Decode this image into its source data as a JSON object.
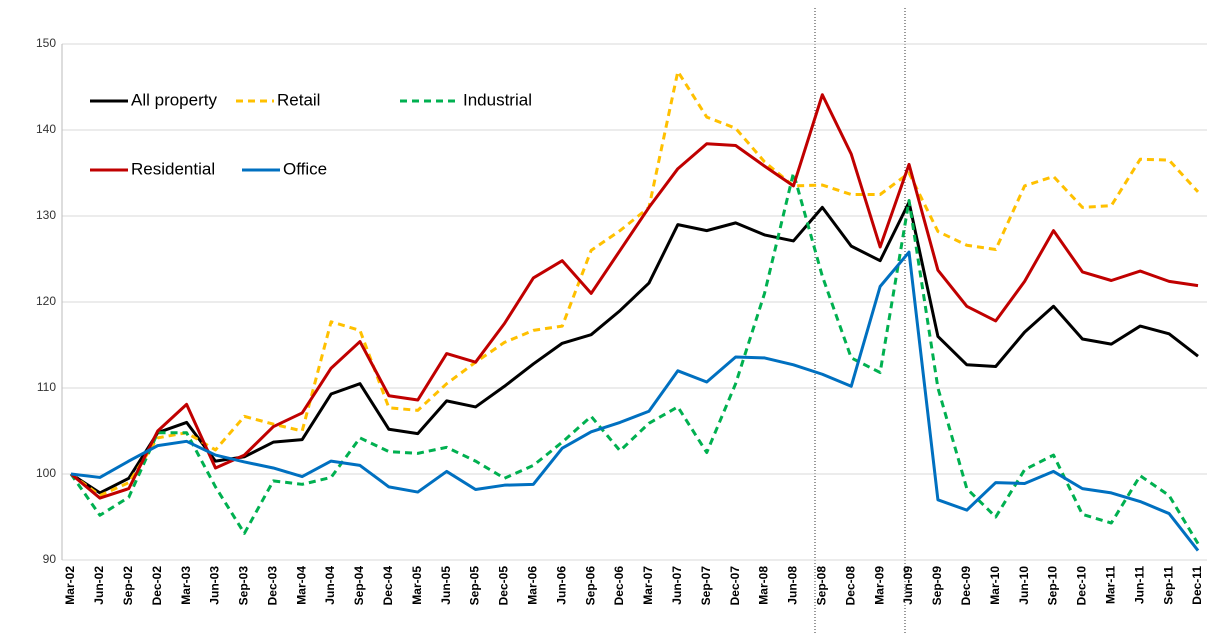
{
  "chart_data": {
    "type": "line",
    "categories": [
      "Mar-02",
      "Jun-02",
      "Sep-02",
      "Dec-02",
      "Mar-03",
      "Jun-03",
      "Sep-03",
      "Dec-03",
      "Mar-04",
      "Jun-04",
      "Sep-04",
      "Dec-04",
      "Mar-05",
      "Jun-05",
      "Sep-05",
      "Dec-05",
      "Mar-06",
      "Jun-06",
      "Sep-06",
      "Dec-06",
      "Mar-07",
      "Jun-07",
      "Sep-07",
      "Dec-07",
      "Mar-08",
      "Jun-08",
      "Sep-08",
      "Dec-08",
      "Mar-09",
      "Jun-09",
      "Sep-09",
      "Dec-09",
      "Mar-10",
      "Jun-10",
      "Sep-10",
      "Dec-10",
      "Mar-11",
      "Jun-11",
      "Sep-11",
      "Dec-11"
    ],
    "series": [
      {
        "name": "All property",
        "color": "#000000",
        "dashed": false,
        "values": [
          100,
          97.8,
          99.5,
          104.8,
          106,
          101.5,
          102,
          103.7,
          104,
          109.3,
          110.5,
          105.2,
          104.7,
          108.5,
          107.8,
          110.2,
          112.8,
          115.2,
          116.2,
          119,
          122.2,
          129,
          128.3,
          129.2,
          127.8,
          127.1,
          131,
          126.5,
          124.8,
          131.6,
          116,
          112.7,
          112.5,
          116.5,
          119.5,
          115.7,
          115.1,
          117.2,
          116.3,
          113.7
        ]
      },
      {
        "name": "Retail",
        "color": "#ffc000",
        "dashed": true,
        "values": [
          100,
          97.5,
          99,
          104.2,
          104.8,
          102.8,
          106.7,
          105.8,
          105,
          117.7,
          116.7,
          107.7,
          107.4,
          110.5,
          113,
          115.3,
          116.7,
          117.2,
          126,
          128.3,
          131,
          146.8,
          141.5,
          140.2,
          136.3,
          133.5,
          133.6,
          132.5,
          132.5,
          135,
          128.2,
          126.6,
          126.1,
          133.5,
          134.6,
          131,
          131.2,
          136.6,
          136.5,
          132.8
        ]
      },
      {
        "name": "Industrial",
        "color": "#00b050",
        "dashed": true,
        "values": [
          100,
          95.2,
          97.3,
          104.8,
          104.8,
          98.5,
          93.1,
          99.2,
          98.8,
          99.6,
          104.2,
          102.6,
          102.4,
          103.1,
          101.5,
          99.5,
          101,
          103.7,
          106.7,
          102.7,
          105.9,
          107.8,
          102.5,
          110.5,
          121,
          135,
          123,
          113.5,
          111.8,
          131.8,
          110,
          98.3,
          95,
          100.5,
          102.2,
          95.3,
          94.3,
          99.8,
          97.5,
          91.9
        ]
      },
      {
        "name": "Residential",
        "color": "#c00000",
        "dashed": false,
        "values": [
          100,
          97.2,
          98.3,
          105,
          108.1,
          100.7,
          102.2,
          105.5,
          107.1,
          112.3,
          115.4,
          109.1,
          108.6,
          114,
          113,
          117.5,
          122.8,
          124.8,
          121,
          126,
          131,
          135.5,
          138.4,
          138.2,
          135.8,
          133.5,
          144.1,
          137.2,
          126.4,
          136,
          123.7,
          119.5,
          117.8,
          122.4,
          128.3,
          123.5,
          122.5,
          123.6,
          122.4,
          121.9
        ]
      },
      {
        "name": "Office",
        "color": "#0070c0",
        "dashed": false,
        "values": [
          100,
          99.6,
          101.5,
          103.3,
          103.8,
          102.2,
          101.4,
          100.7,
          99.7,
          101.5,
          101,
          98.5,
          97.9,
          100.3,
          98.2,
          98.7,
          98.8,
          103,
          104.9,
          106,
          107.3,
          112,
          110.7,
          113.6,
          113.5,
          112.7,
          111.6,
          110.2,
          121.8,
          125.8,
          97,
          95.8,
          99,
          98.9,
          100.3,
          98.3,
          97.8,
          96.8,
          95.4,
          91.1
        ]
      }
    ],
    "ylim": [
      90,
      150
    ],
    "yticks": [
      90,
      100,
      110,
      120,
      130,
      140,
      150
    ],
    "grid": true
  }
}
